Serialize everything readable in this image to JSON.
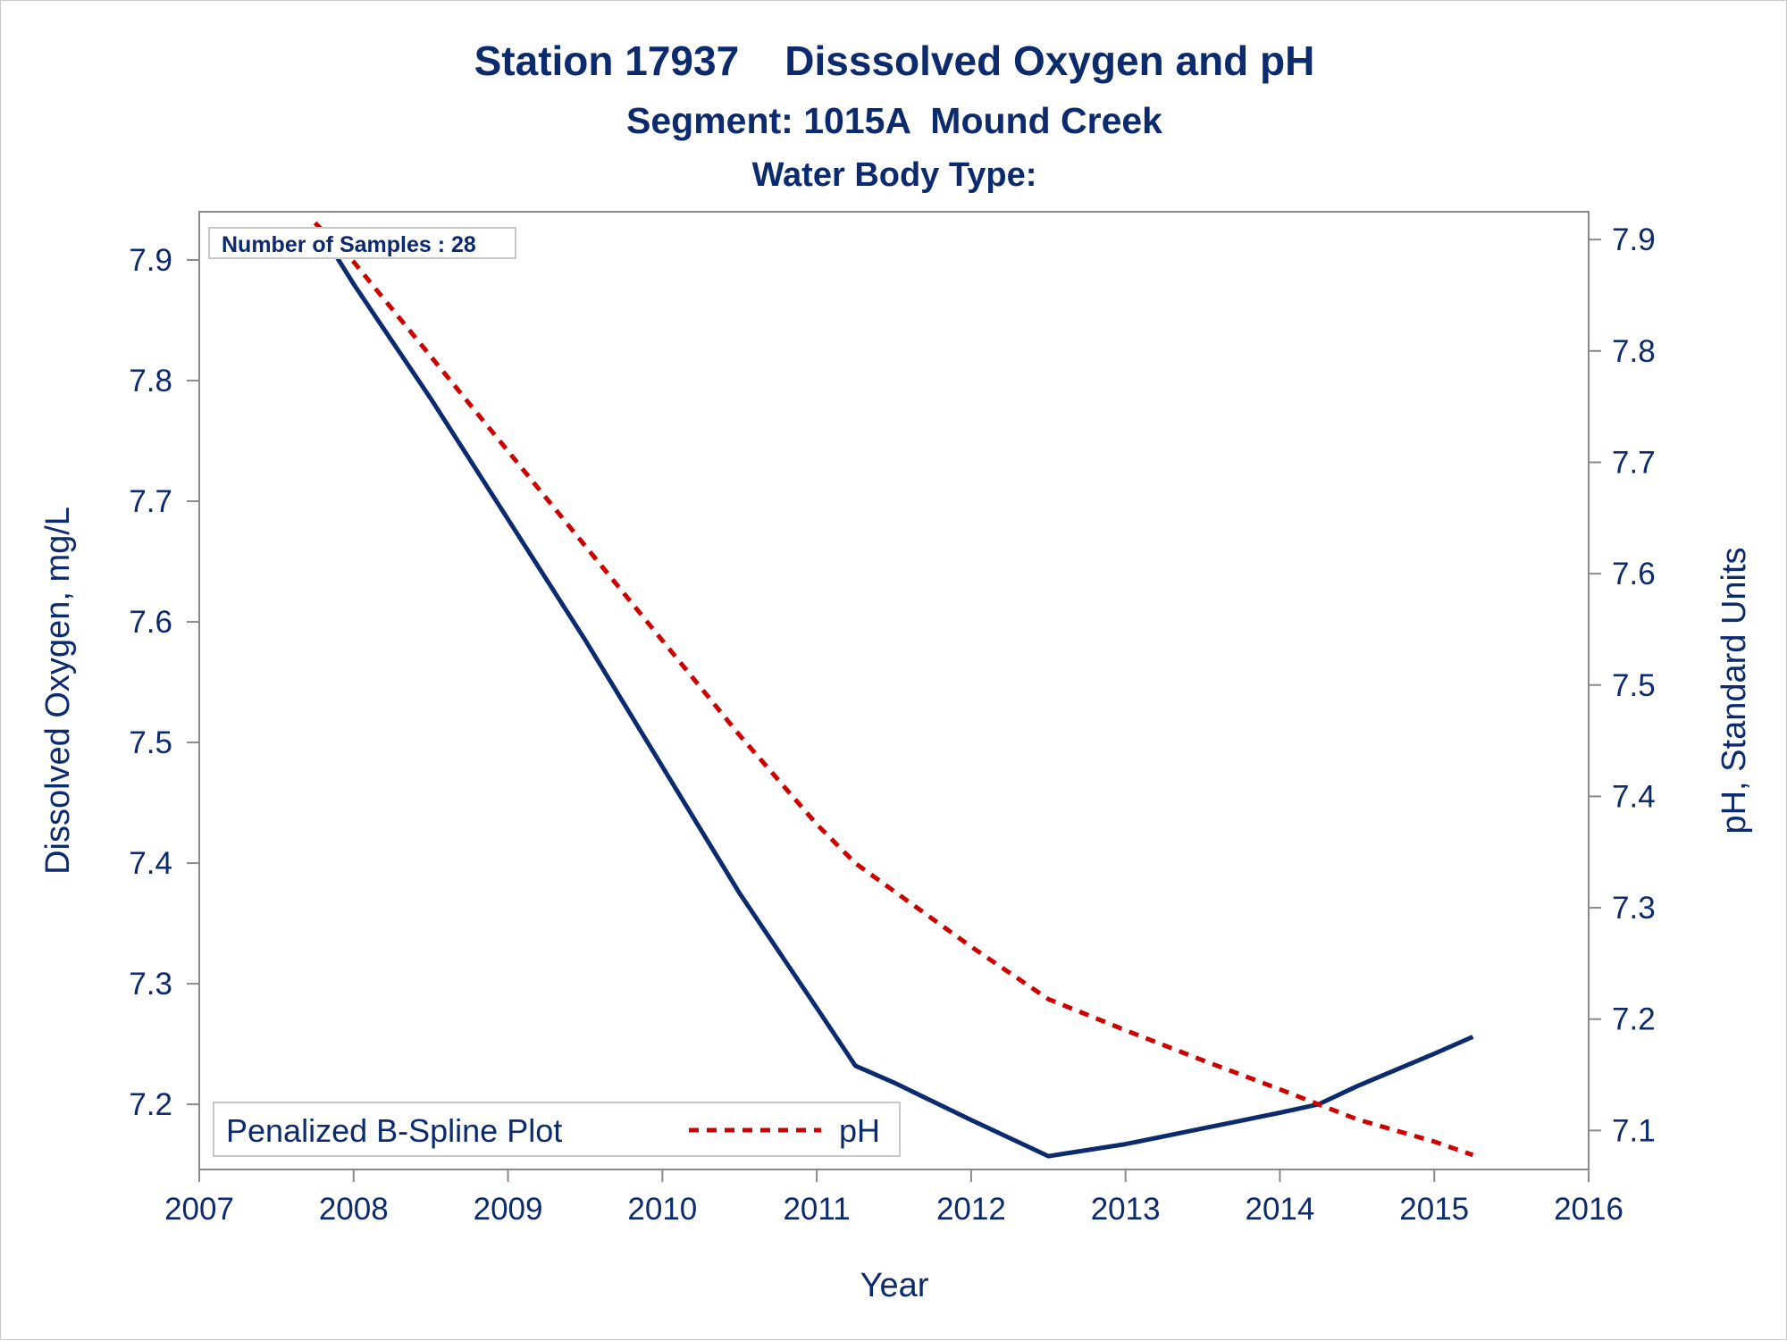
{
  "chart_data": {
    "type": "line",
    "title": "Station 17937    Disssolved Oxygen and pH",
    "subtitle": "Segment: 1015A  Mound Creek",
    "subtitle2": "Water Body Type:",
    "xlabel": "Year",
    "ylabel_left": "Dissolved Oxygen, mg/L",
    "ylabel_right": "pH, Standard Units",
    "xlim": [
      2007,
      2016
    ],
    "x_ticks": [
      "2007",
      "2008",
      "2009",
      "2010",
      "2011",
      "2012",
      "2013",
      "2014",
      "2015",
      "2016"
    ],
    "ylim_left": [
      7.146,
      7.94
    ],
    "y_ticks_left": [
      "7.2",
      "7.3",
      "7.4",
      "7.5",
      "7.6",
      "7.7",
      "7.8",
      "7.9"
    ],
    "ylim_right": [
      7.065,
      7.925
    ],
    "y_ticks_right": [
      "7.1",
      "7.2",
      "7.3",
      "7.4",
      "7.5",
      "7.6",
      "7.7",
      "7.8",
      "7.9"
    ],
    "annotation": "Number of Samples : 28",
    "legend": {
      "placement": "bottom-left",
      "title": "Penalized B-Spline Plot",
      "entries": [
        "pH"
      ]
    },
    "series": [
      {
        "axis": "left",
        "style": "solid",
        "color": "#0c2a6e",
        "x": [
          2007.83,
          2008.0,
          2008.5,
          2009.0,
          2009.5,
          2010.0,
          2010.5,
          2011.0,
          2011.25,
          2011.5,
          2012.0,
          2012.5,
          2013.0,
          2013.5,
          2014.0,
          2014.25,
          2014.5,
          2015.0,
          2015.25
        ],
        "values": [
          7.915,
          7.88,
          7.785,
          7.685,
          7.585,
          7.48,
          7.375,
          7.28,
          7.232,
          7.218,
          7.187,
          7.157,
          7.167,
          7.18,
          7.193,
          7.2,
          7.215,
          7.242,
          7.256
        ]
      },
      {
        "name": "pH",
        "axis": "right",
        "style": "dashed",
        "color": "#cc0000",
        "x": [
          2007.75,
          2008.0,
          2008.5,
          2009.0,
          2009.5,
          2010.0,
          2010.5,
          2011.0,
          2011.25,
          2011.5,
          2012.0,
          2012.5,
          2013.0,
          2013.5,
          2014.0,
          2014.5,
          2015.0,
          2015.25
        ],
        "values": [
          7.915,
          7.88,
          7.795,
          7.71,
          7.625,
          7.54,
          7.455,
          7.375,
          7.34,
          7.315,
          7.265,
          7.218,
          7.19,
          7.163,
          7.137,
          7.11,
          7.09,
          7.078
        ]
      }
    ]
  }
}
